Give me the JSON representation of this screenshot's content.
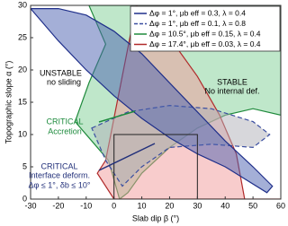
{
  "chart_data": {
    "type": "area",
    "xlabel": "Slab dip β (°)",
    "ylabel": "Topographic slope α (°)",
    "xlim": [
      -30,
      60
    ],
    "xticks": [
      -30,
      -20,
      -10,
      0,
      10,
      20,
      30,
      40,
      50,
      60
    ],
    "ylim": [
      0,
      30
    ],
    "yticks": [
      0,
      5,
      10,
      15,
      20,
      25,
      30
    ],
    "legend": "top-right",
    "series": [
      {
        "name": "Δφ = 10.5°, μb eff = 0.15, λ = 0.4",
        "color": "#1f8a3c",
        "fill": "#7fcf95",
        "dash": false,
        "x": [
          -9,
          60,
          60,
          50,
          40,
          30,
          20,
          10,
          5,
          2,
          -2,
          -8,
          -14,
          -9,
          -3
        ],
        "values": [
          30,
          30,
          13,
          14,
          13,
          11,
          8,
          4,
          1,
          0,
          6,
          9,
          12,
          18,
          24
        ]
      },
      {
        "name": "Δφ = 17.4°, μb eff = 0.03, λ = 0.4",
        "color": "#b02a2a",
        "fill": "#f29a9a",
        "dash": false,
        "x": [
          8,
          20,
          30,
          38,
          44,
          47,
          60,
          60,
          15,
          0,
          -6,
          -3
        ],
        "values": [
          30,
          25,
          19,
          13,
          7,
          0,
          0,
          0,
          0,
          0,
          4,
          6
        ]
      },
      {
        "name": "Δφ = 1°, μb eff = 0.1, λ = 0.8",
        "color": "#3a4ea0",
        "fill": "#b0b0b8",
        "dash": true,
        "x": [
          -8,
          5,
          20,
          35,
          50,
          56,
          50,
          35,
          20,
          10,
          3,
          -3
        ],
        "values": [
          11,
          13.5,
          14.5,
          14,
          12,
          10,
          8,
          8.5,
          8,
          5,
          2,
          6
        ]
      },
      {
        "name": "Δφ = 1°, μb eff = 0.3, λ = 0.4",
        "color": "#1f2f8a",
        "fill": "#4a5fb0",
        "dash": false,
        "x": [
          -30,
          -20,
          -10,
          0,
          10,
          20,
          30,
          40,
          50,
          57,
          55,
          40,
          30,
          20,
          10,
          0,
          -10,
          -20
        ],
        "values": [
          29.5,
          29.5,
          28.5,
          26,
          22.5,
          18,
          13.5,
          9,
          5,
          2,
          1,
          5,
          7,
          9.5,
          12.5,
          16,
          20,
          24.5
        ]
      }
    ],
    "box_x": [
      0,
      30
    ],
    "box_y": [
      0,
      10
    ],
    "annotations": [
      "UNSTABLE",
      "no sliding",
      "STABLE",
      "No internal def.",
      "CRITICAL",
      "Accretion",
      "CRITICAL",
      "Interface deform.",
      "Δφ ≤ 1°, δb ≤ 10°"
    ]
  }
}
